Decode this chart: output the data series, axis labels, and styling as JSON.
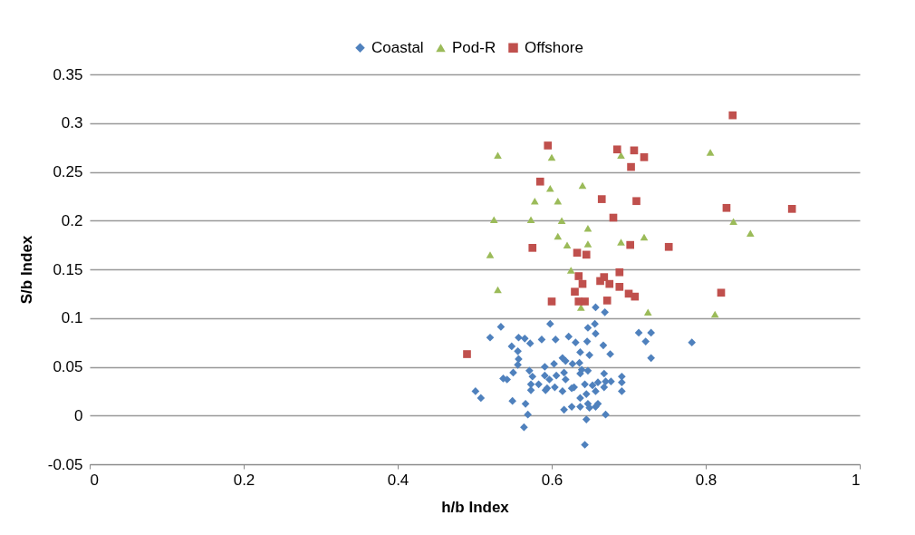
{
  "chart_data": {
    "type": "scatter",
    "xlabel": "h/b Index",
    "ylabel": "S/b Index",
    "xlim": [
      0,
      1
    ],
    "xticks": [
      0,
      0.2,
      0.4,
      0.6,
      0.8,
      1
    ],
    "ylim": [
      -0.05,
      0.35
    ],
    "yticks": [
      -0.05,
      0,
      0.05,
      0.1,
      0.15,
      0.2,
      0.25,
      0.3,
      0.35
    ],
    "grid": "y",
    "legend": "top",
    "series": [
      {
        "name": "Coastal",
        "color": "#4f81bd",
        "marker": "diamond",
        "x": [
          0.657,
          0.669,
          0.598,
          0.534,
          0.647,
          0.656,
          0.52,
          0.557,
          0.565,
          0.572,
          0.587,
          0.605,
          0.622,
          0.631,
          0.646,
          0.657,
          0.713,
          0.729,
          0.722,
          0.667,
          0.676,
          0.729,
          0.548,
          0.556,
          0.557,
          0.637,
          0.649,
          0.614,
          0.618,
          0.556,
          0.591,
          0.603,
          0.627,
          0.636,
          0.639,
          0.647,
          0.571,
          0.55,
          0.537,
          0.542,
          0.575,
          0.591,
          0.616,
          0.618,
          0.637,
          0.668,
          0.691,
          0.573,
          0.583,
          0.594,
          0.604,
          0.614,
          0.629,
          0.643,
          0.653,
          0.66,
          0.67,
          0.677,
          0.691,
          0.573,
          0.592,
          0.637,
          0.645,
          0.657,
          0.668,
          0.691,
          0.501,
          0.508,
          0.549,
          0.566,
          0.616,
          0.626,
          0.647,
          0.649,
          0.657,
          0.66,
          0.67,
          0.569,
          0.645,
          0.564,
          0.643,
          0.637,
          0.597,
          0.606,
          0.626,
          0.782
        ],
        "values": [
          0.111,
          0.106,
          0.094,
          0.091,
          0.09,
          0.094,
          0.08,
          0.08,
          0.079,
          0.074,
          0.078,
          0.078,
          0.081,
          0.075,
          0.076,
          0.084,
          0.085,
          0.085,
          0.076,
          0.072,
          0.063,
          0.059,
          0.071,
          0.066,
          0.058,
          0.065,
          0.062,
          0.059,
          0.056,
          0.052,
          0.05,
          0.053,
          0.053,
          0.054,
          0.047,
          0.046,
          0.046,
          0.044,
          0.038,
          0.037,
          0.04,
          0.041,
          0.044,
          0.037,
          0.043,
          0.043,
          0.04,
          0.032,
          0.032,
          0.028,
          0.029,
          0.025,
          0.029,
          0.032,
          0.031,
          0.034,
          0.035,
          0.035,
          0.034,
          0.026,
          0.026,
          0.018,
          0.022,
          0.025,
          0.029,
          0.025,
          0.025,
          0.018,
          0.015,
          0.012,
          0.006,
          0.009,
          0.012,
          0.008,
          0.009,
          0.012,
          0.001,
          0.001,
          -0.004,
          -0.012,
          -0.03,
          0.009,
          0.037,
          0.041,
          0.028,
          0.075
        ]
      },
      {
        "name": "Pod-R",
        "color": "#9bbb59",
        "marker": "triangle",
        "x": [
          0.53,
          0.525,
          0.52,
          0.53,
          0.573,
          0.578,
          0.6,
          0.598,
          0.608,
          0.608,
          0.613,
          0.62,
          0.625,
          0.64,
          0.647,
          0.647,
          0.638,
          0.69,
          0.69,
          0.72,
          0.725,
          0.806,
          0.812,
          0.836,
          0.858
        ],
        "values": [
          0.267,
          0.201,
          0.165,
          0.129,
          0.201,
          0.22,
          0.265,
          0.233,
          0.22,
          0.184,
          0.2,
          0.175,
          0.149,
          0.236,
          0.192,
          0.176,
          0.111,
          0.267,
          0.178,
          0.183,
          0.106,
          0.27,
          0.104,
          0.199,
          0.187
        ]
      },
      {
        "name": "Offshore",
        "color": "#c0504d",
        "marker": "square",
        "x": [
          0.49,
          0.595,
          0.585,
          0.575,
          0.6,
          0.633,
          0.645,
          0.635,
          0.63,
          0.64,
          0.635,
          0.643,
          0.665,
          0.668,
          0.663,
          0.672,
          0.675,
          0.68,
          0.685,
          0.688,
          0.688,
          0.7,
          0.702,
          0.703,
          0.707,
          0.71,
          0.708,
          0.72,
          0.752,
          0.82,
          0.827,
          0.835,
          0.912
        ],
        "values": [
          0.063,
          0.277,
          0.24,
          0.172,
          0.117,
          0.167,
          0.165,
          0.143,
          0.127,
          0.135,
          0.117,
          0.117,
          0.222,
          0.142,
          0.138,
          0.118,
          0.135,
          0.203,
          0.273,
          0.147,
          0.132,
          0.125,
          0.175,
          0.255,
          0.272,
          0.22,
          0.122,
          0.265,
          0.173,
          0.126,
          0.213,
          0.308,
          0.212
        ]
      }
    ]
  }
}
